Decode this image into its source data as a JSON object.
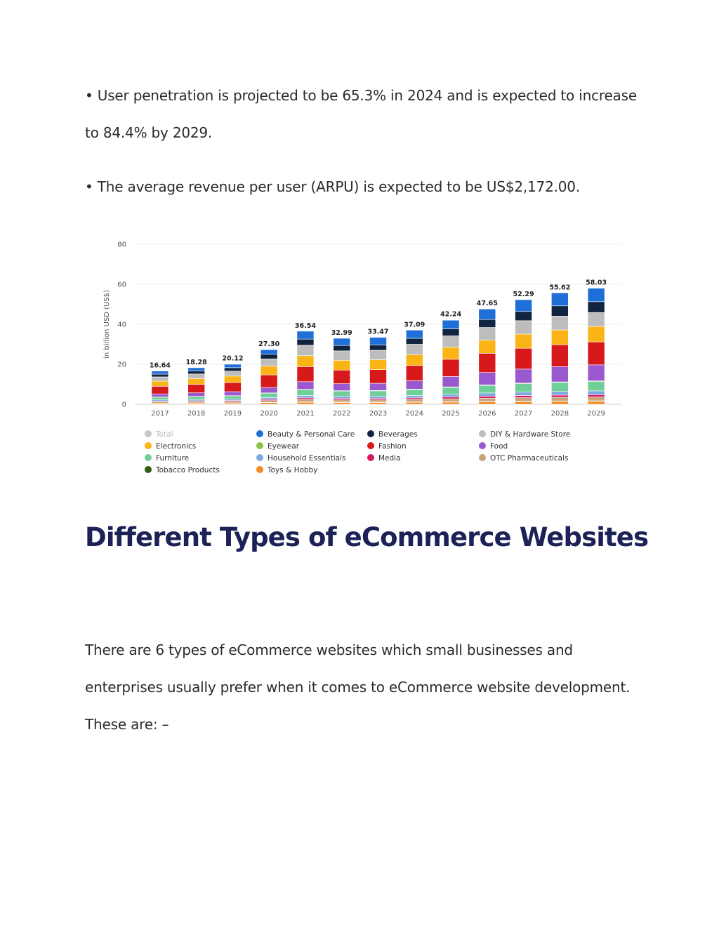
{
  "paragraphs": {
    "p1": "• User penetration is projected to be 65.3% in 2024 and is expected to increase to 84.4% by 2029.",
    "p2": "• The average revenue per user (ARPU) is expected to be US$2,172.00.",
    "p3": "There are 6 types of eCommerce websites which small businesses and enterprises usually prefer when it comes to eCommerce website development. These are: –"
  },
  "heading": "Different Types of eCommerce Websites",
  "chart_data": {
    "type": "bar",
    "stacked": true,
    "ylabel": "in billion USD (US$)",
    "ylim": [
      0,
      80
    ],
    "yticks": [
      0,
      20,
      40,
      60,
      80
    ],
    "grid": true,
    "legend_position": "bottom",
    "categories": [
      "2017",
      "2018",
      "2019",
      "2020",
      "2021",
      "2022",
      "2023",
      "2024",
      "2025",
      "2026",
      "2027",
      "2028",
      "2029"
    ],
    "totals": [
      16.64,
      18.28,
      20.12,
      27.3,
      36.54,
      32.99,
      33.47,
      37.09,
      42.24,
      47.65,
      52.29,
      55.62,
      58.03
    ],
    "total_labels": [
      "16.64",
      "18.28",
      "20.12",
      "27.30",
      "36.54",
      "32.99",
      "33.47",
      "37.09",
      "42.24",
      "47.65",
      "52.29",
      "55.62",
      "58.03"
    ],
    "series": [
      {
        "name": "Toys & Hobby",
        "color": "#f5891f",
        "values": [
          0.5,
          0.55,
          0.6,
          0.8,
          1.0,
          0.9,
          0.9,
          1.0,
          1.1,
          1.2,
          1.3,
          1.4,
          1.45
        ]
      },
      {
        "name": "Tobacco Products",
        "color": "#2e5e12",
        "values": [
          0.1,
          0.1,
          0.1,
          0.15,
          0.2,
          0.2,
          0.2,
          0.2,
          0.25,
          0.25,
          0.3,
          0.3,
          0.3
        ]
      },
      {
        "name": "OTC Pharmaceuticals",
        "color": "#c9a27a",
        "values": [
          0.6,
          0.65,
          0.7,
          0.9,
          1.2,
          1.1,
          1.1,
          1.2,
          1.4,
          1.6,
          1.7,
          1.8,
          1.9
        ]
      },
      {
        "name": "Media",
        "color": "#d81b60",
        "values": [
          0.4,
          0.45,
          0.5,
          0.6,
          0.8,
          0.7,
          0.7,
          0.8,
          0.9,
          1.0,
          1.1,
          1.1,
          1.15
        ]
      },
      {
        "name": "Household Essentials",
        "color": "#7ea8e4",
        "values": [
          0.6,
          0.65,
          0.7,
          0.9,
          1.2,
          1.1,
          1.1,
          1.2,
          1.4,
          1.6,
          1.7,
          1.8,
          1.9
        ]
      },
      {
        "name": "Furniture",
        "color": "#6fcf97",
        "values": [
          1.3,
          1.45,
          1.6,
          2.2,
          2.9,
          2.6,
          2.7,
          3.0,
          3.4,
          3.8,
          4.2,
          4.5,
          4.7
        ]
      },
      {
        "name": "Eyewear",
        "color": "#8bc34a",
        "values": [
          0.1,
          0.1,
          0.1,
          0.15,
          0.2,
          0.2,
          0.2,
          0.2,
          0.25,
          0.25,
          0.3,
          0.3,
          0.3
        ]
      },
      {
        "name": "Food",
        "color": "#9b59d0",
        "values": [
          1.6,
          1.8,
          2.0,
          2.7,
          3.8,
          3.5,
          3.6,
          4.2,
          5.2,
          6.2,
          7.0,
          7.6,
          8.0
        ]
      },
      {
        "name": "Fashion",
        "color": "#d7191c",
        "values": [
          3.8,
          4.2,
          4.6,
          6.3,
          7.5,
          6.8,
          6.8,
          7.6,
          8.6,
          9.6,
          10.4,
          11.0,
          11.5
        ]
      },
      {
        "name": "Electronics",
        "color": "#fbb416",
        "values": [
          2.6,
          2.9,
          3.2,
          4.4,
          5.5,
          4.9,
          5.0,
          5.4,
          6.0,
          6.6,
          7.1,
          7.4,
          7.7
        ]
      },
      {
        "name": "DIY & Hardware Store",
        "color": "#bdbdbd",
        "values": [
          2.1,
          2.3,
          2.5,
          3.6,
          5.2,
          4.7,
          4.7,
          5.2,
          5.7,
          6.3,
          6.7,
          6.9,
          7.0
        ]
      },
      {
        "name": "Beverages",
        "color": "#10233f",
        "values": [
          1.4,
          1.55,
          1.7,
          2.3,
          3.1,
          2.7,
          2.7,
          3.0,
          3.5,
          4.0,
          4.6,
          5.1,
          5.4
        ]
      },
      {
        "name": "Beauty & Personal Care",
        "color": "#1f6fd8",
        "values": [
          1.54,
          1.58,
          1.72,
          2.3,
          3.94,
          3.59,
          3.77,
          4.09,
          4.34,
          5.24,
          5.89,
          6.52,
          6.73
        ]
      }
    ],
    "legend": [
      {
        "name": "Total",
        "color": "#c8c8c8",
        "dim": true
      },
      {
        "name": "Beauty & Personal Care",
        "color": "#1f6fd8"
      },
      {
        "name": "Beverages",
        "color": "#10233f"
      },
      {
        "name": "DIY & Hardware Store",
        "color": "#bdbdbd"
      },
      {
        "name": "Electronics",
        "color": "#fbb416"
      },
      {
        "name": "Eyewear",
        "color": "#8bc34a"
      },
      {
        "name": "Fashion",
        "color": "#d7191c"
      },
      {
        "name": "Food",
        "color": "#9b59d0"
      },
      {
        "name": "Furniture",
        "color": "#6fcf97"
      },
      {
        "name": "Household Essentials",
        "color": "#7ea8e4"
      },
      {
        "name": "Media",
        "color": "#d81b60"
      },
      {
        "name": "OTC Pharmaceuticals",
        "color": "#c9a27a"
      },
      {
        "name": "Tobacco Products",
        "color": "#2e5e12"
      },
      {
        "name": "Toys & Hobby",
        "color": "#f5891f"
      }
    ]
  }
}
